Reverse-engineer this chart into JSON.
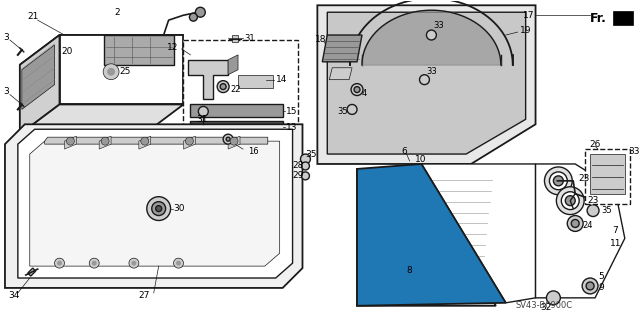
{
  "bg_color": "#ffffff",
  "diagram_code": "SV43-B0900C",
  "line_color": "#1a1a1a",
  "gray_light": "#cccccc",
  "gray_med": "#999999",
  "gray_dark": "#555555",
  "white": "#ffffff",
  "lw_main": 1.0,
  "lw_thin": 0.5,
  "lw_thick": 1.3
}
